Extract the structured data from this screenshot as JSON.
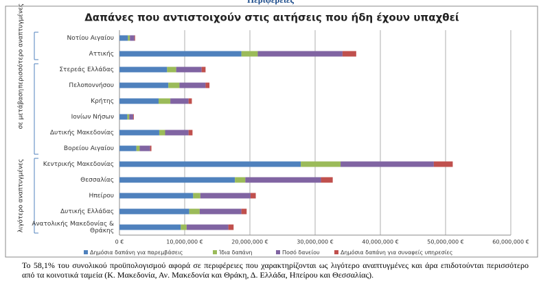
{
  "heading": "Περιφέρειες",
  "chart_data": {
    "type": "stacked-barh",
    "title": "Δαπάνες που αντιστοιχούν στις αιτήσεις που ήδη έχουν υπαχθεί",
    "groups": [
      {
        "label": "περισσότερο αναπτυγμένες",
        "categories": [
          "Νοτίου Αιγαίου",
          "Αττικής"
        ]
      },
      {
        "label": "σε μετάβαση",
        "categories": [
          "Στερεάς Ελλάδας",
          "Πελοποννήσου",
          "Κρήτης",
          "Ιονίων Νήσων",
          "Δυτικής Μακεδονίας",
          "Βορείου Αιγαίου"
        ]
      },
      {
        "label": "λιγότερο αναπτυγμένες",
        "categories": [
          "Κεντρικής Μακεδονίας",
          "Θεσσαλίας",
          "Ηπείρου",
          "Δυτικής Ελλάδας",
          "Ανατολικής Μακεδονίας & Θράκης"
        ]
      }
    ],
    "series": [
      {
        "name": "Δημόσια δαπάνη για παρεμβάσεις",
        "color": "#4f81bd",
        "values": [
          1300000,
          18700000,
          7300000,
          7500000,
          6000000,
          1200000,
          6100000,
          2600000,
          27800000,
          17700000,
          11300000,
          10700000,
          9400000
        ]
      },
      {
        "name": "Ίδια δαπάνη",
        "color": "#9bbb59",
        "values": [
          300000,
          2500000,
          1400000,
          1700000,
          1800000,
          300000,
          900000,
          500000,
          6100000,
          1600000,
          1100000,
          1600000,
          900000
        ]
      },
      {
        "name": "Ποσό δανείου",
        "color": "#8064a2",
        "values": [
          700000,
          13000000,
          3900000,
          4000000,
          2800000,
          600000,
          3600000,
          1600000,
          14300000,
          11600000,
          7700000,
          6400000,
          6400000
        ]
      },
      {
        "name": "Δημόσια δαπάνη για συναφείς υπηρεσίες",
        "color": "#c0504d",
        "values": [
          100000,
          2100000,
          600000,
          600000,
          500000,
          100000,
          600000,
          200000,
          2900000,
          1800000,
          800000,
          800000,
          800000
        ]
      }
    ],
    "xlim": [
      0,
      60000000
    ],
    "xticks": [
      {
        "value": 0,
        "label": "0 €"
      },
      {
        "value": 10000000,
        "label": "10,000,000 €"
      },
      {
        "value": 20000000,
        "label": "20,000,000 €"
      },
      {
        "value": 30000000,
        "label": "30,000,000 €"
      },
      {
        "value": 40000000,
        "label": "40,000,000 €"
      },
      {
        "value": 50000000,
        "label": "50,000,000 €"
      },
      {
        "value": 60000000,
        "label": "60,000,000 €"
      }
    ],
    "grid": true,
    "legend": "bottom"
  },
  "paragraph": "Το 58,1% του συνολικού προϋπολογισμού αφορά σε περιφέρειες που χαρακτηρίζονται ως λιγότερο αναπτυγμένες και άρα επιδοτούνται περισσότερο από τα κοινοτικά ταμεία (Κ. Μακεδονία, Αν. Μακεδονία και Θράκη, Δ. Ελλάδα, Ηπείρου και Θεσσαλίας)."
}
